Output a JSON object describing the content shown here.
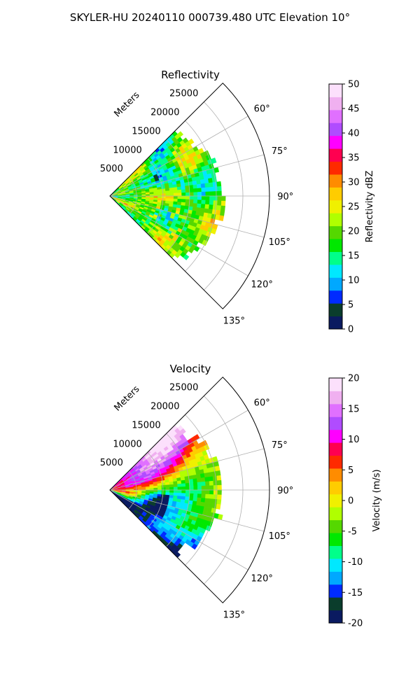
{
  "figure": {
    "title": "SKYLER-HU  20240110  000739.480 UTC Elevation 10°"
  },
  "chart_data": [
    {
      "type": "heatmap",
      "subtype": "polar-sector",
      "title": "Reflectivity",
      "radial_label": "Meters",
      "r_ticks": [
        5000,
        10000,
        15000,
        20000,
        25000
      ],
      "r_tick_labels": [
        "5000",
        "10000",
        "15000",
        "20000",
        "25000"
      ],
      "rmax": 30000,
      "theta_range_deg": [
        45,
        135
      ],
      "theta_ticks_deg": [
        60,
        75,
        90,
        105,
        120,
        135
      ],
      "theta_tick_labels": [
        "60°",
        "75°",
        "90°",
        "105°",
        "120°",
        "135°"
      ],
      "grid": true,
      "data_extent": {
        "max_range_m": 21000,
        "azimuth_deg": [
          45,
          135
        ]
      },
      "colorbar": {
        "label": "Reflectivity dBZ",
        "range": [
          0,
          50
        ],
        "ticks": [
          0,
          5,
          10,
          15,
          20,
          25,
          30,
          35,
          40,
          45,
          50
        ],
        "colors": [
          "#0a1a60",
          "#0a3d2c",
          "#002bff",
          "#00a8ff",
          "#00e8ff",
          "#00ff8a",
          "#00e800",
          "#55d800",
          "#b0ff00",
          "#f0f000",
          "#ffcc00",
          "#ff8c00",
          "#ff2a00",
          "#ff0050",
          "#ff00ff",
          "#b04cff",
          "#e070ff",
          "#f0b0f0",
          "#fce0fc"
        ]
      },
      "field_summary": "Mostly 15–25 dBZ (green/lime) with scattered yellow cells up to ~30 dBZ"
    },
    {
      "type": "heatmap",
      "subtype": "polar-sector",
      "title": "Velocity",
      "radial_label": "Meters",
      "r_ticks": [
        5000,
        10000,
        15000,
        20000,
        25000
      ],
      "r_tick_labels": [
        "5000",
        "10000",
        "15000",
        "20000",
        "25000"
      ],
      "rmax": 30000,
      "theta_range_deg": [
        45,
        135
      ],
      "theta_ticks_deg": [
        60,
        75,
        90,
        105,
        120,
        135
      ],
      "theta_tick_labels": [
        "60°",
        "75°",
        "90°",
        "105°",
        "120°",
        "135°"
      ],
      "grid": true,
      "data_extent": {
        "max_range_m": 21000,
        "azimuth_deg": [
          45,
          135
        ]
      },
      "colorbar": {
        "label": "Velocity (m/s)",
        "range": [
          -20,
          20
        ],
        "ticks": [
          -20,
          -15,
          -10,
          -5,
          0,
          5,
          10,
          15,
          20
        ],
        "colors": [
          "#0a1a60",
          "#0a3d2c",
          "#002bff",
          "#00a8ff",
          "#00e8ff",
          "#00ff8a",
          "#00e800",
          "#55d800",
          "#b0ff00",
          "#f0f000",
          "#ffcc00",
          "#ff8c00",
          "#ff2a00",
          "#ff0050",
          "#ff00ff",
          "#b04cff",
          "#e070ff",
          "#f0b0f0",
          "#fce0fc"
        ]
      },
      "field_summary": "Banded velocity: +15 to +20 m/s (magenta) toward the north edge, ~0 to +10 m/s (yellow/red) near 75–90°, −5 to −12 m/s (green/cyan) toward the south"
    }
  ]
}
